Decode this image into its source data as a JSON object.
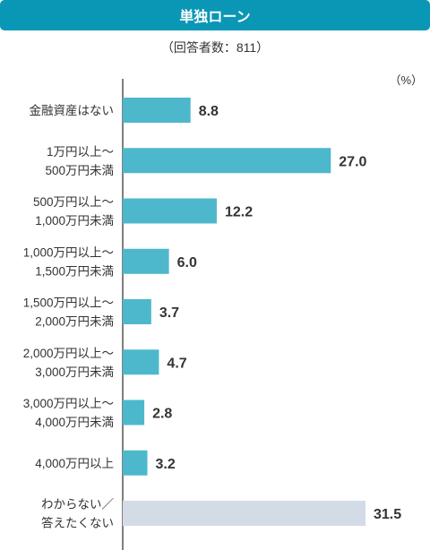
{
  "header": {
    "title": "単独ローン",
    "subtitle": "（回答者数：811）",
    "unit": "（%）"
  },
  "colors": {
    "title_bg": "#0a97b5",
    "bar": "#4db8cc",
    "bar_other": "#d3dce6",
    "axis": "#555555"
  },
  "chart_data": {
    "type": "bar",
    "orientation": "horizontal",
    "title": "単独ローン",
    "subtitle": "（回答者数：811）",
    "unit": "（%）",
    "categories": [
      [
        "金融資産はない"
      ],
      [
        "1万円以上～",
        "500万円未満"
      ],
      [
        "500万円以上～",
        "1,000万円未満"
      ],
      [
        "1,000万円以上～",
        "1,500万円未満"
      ],
      [
        "1,500万円以上～",
        "2,000万円未満"
      ],
      [
        "2,000万円以上～",
        "3,000万円未満"
      ],
      [
        "3,000万円以上～",
        "4,000万円未満"
      ],
      [
        "4,000万円以上"
      ],
      [
        "わからない／",
        "答えたくない"
      ]
    ],
    "values": [
      8.8,
      27.0,
      12.2,
      6.0,
      3.7,
      4.7,
      2.8,
      3.2,
      31.5
    ],
    "value_labels": [
      "8.8",
      "27.0",
      "12.2",
      "6.0",
      "3.7",
      "4.7",
      "2.8",
      "3.2",
      "31.5"
    ],
    "highlight_gray_index": 8,
    "xlim": [
      0,
      31.5
    ],
    "grid": false
  }
}
